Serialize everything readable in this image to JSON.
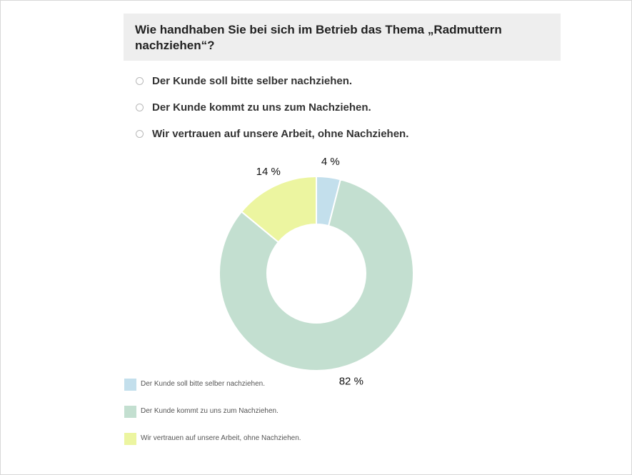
{
  "question": {
    "title": "Wie handhaben Sie bei sich im Betrieb das Thema „Radmuttern nachziehen“?"
  },
  "options": [
    "Der Kunde soll bitte selber nachziehen.",
    "Der Kunde kommt zu uns zum Nachziehen.",
    "Wir vertrauen auf unsere Arbeit, ohne Nachziehen."
  ],
  "chart_data": {
    "type": "pie",
    "categories": [
      "Der Kunde soll bitte selber nachziehen.",
      "Der Kunde kommt zu uns zum Nachziehen.",
      "Wir vertrauen auf unsere Arbeit, ohne Nachziehen."
    ],
    "values": [
      4,
      82,
      14
    ],
    "value_labels": [
      "4 %",
      "82 %",
      "14 %"
    ],
    "colors": [
      "#c3dfec",
      "#c3dfd0",
      "#ecf5a0"
    ],
    "donut": true,
    "legend_position": "bottom-left"
  }
}
